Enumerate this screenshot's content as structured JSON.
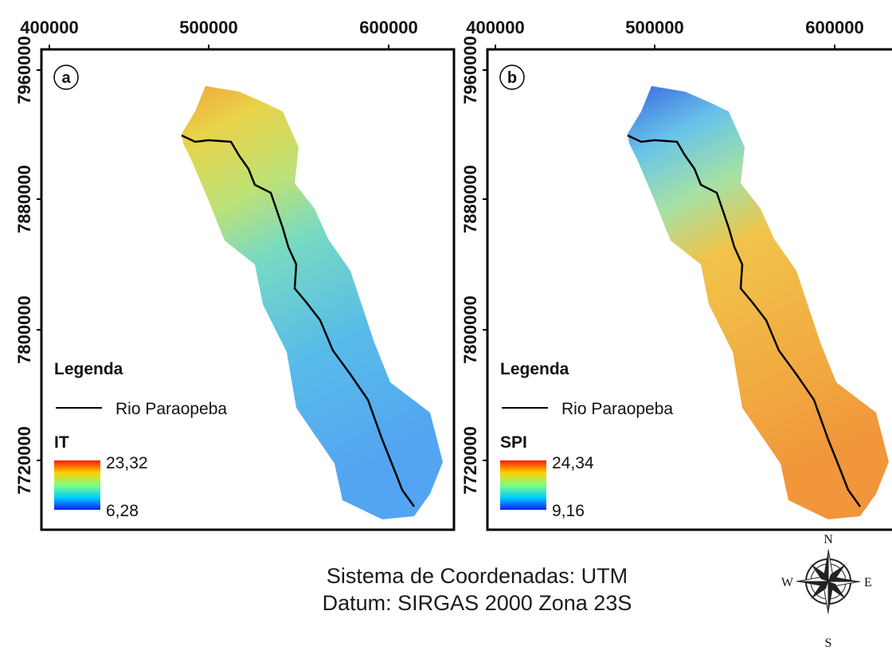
{
  "panels": [
    {
      "label": "a",
      "x_ticks": [
        400000,
        500000,
        600000
      ],
      "y_ticks": [
        7960000,
        7880000,
        7800000,
        7720000
      ],
      "legend": {
        "title": "Legenda",
        "line_label": "Rio Paraopeba",
        "variable": "IT",
        "max": "23,32",
        "min": "6,28"
      }
    },
    {
      "label": "b",
      "x_ticks": [
        400000,
        500000,
        600000
      ],
      "y_ticks": [
        7960000,
        7880000,
        7800000,
        7720000
      ],
      "legend": {
        "title": "Legenda",
        "line_label": "Rio Paraopeba",
        "variable": "SPI",
        "max": "24,34",
        "min": "9,16"
      }
    }
  ],
  "footer": {
    "line1": "Sistema de Coordenadas: UTM",
    "line2": "Datum: SIRGAS 2000 Zona 23S"
  },
  "compass": {
    "n": "N",
    "s": "S",
    "w": "W",
    "e": "E"
  }
}
